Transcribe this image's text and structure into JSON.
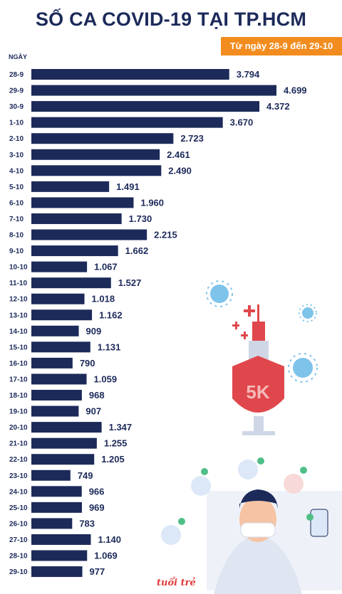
{
  "header": {
    "title": "SỐ CA COVID-19 TẠI TP.HCM",
    "date_range": "Từ ngày 28-9 đến 29-10"
  },
  "colors": {
    "bar": "#1c2a5a",
    "accent": "#f28c1e"
  },
  "logo_text": "tuổi trẻ",
  "chart_data": {
    "type": "bar",
    "orientation": "horizontal",
    "title": "SỐ CA COVID-19 TẠI TP.HCM",
    "subtitle": "Từ ngày 28-9 đến 29-10",
    "ylabel": "NGÀY",
    "xlabel": "",
    "xlim": [
      0,
      5000
    ],
    "categories": [
      "28-9",
      "29-9",
      "30-9",
      "1-10",
      "2-10",
      "3-10",
      "4-10",
      "5-10",
      "6-10",
      "7-10",
      "8-10",
      "9-10",
      "10-10",
      "11-10",
      "12-10",
      "13-10",
      "14-10",
      "15-10",
      "16-10",
      "17-10",
      "18-10",
      "19-10",
      "20-10",
      "21-10",
      "22-10",
      "23-10",
      "24-10",
      "25-10",
      "26-10",
      "27-10",
      "28-10",
      "29-10"
    ],
    "values": [
      3794,
      4699,
      4372,
      3670,
      2723,
      2461,
      2490,
      1491,
      1960,
      1730,
      2215,
      1662,
      1067,
      1527,
      1018,
      1162,
      909,
      1131,
      790,
      1059,
      968,
      907,
      1347,
      1255,
      1205,
      749,
      966,
      969,
      783,
      1140,
      1069,
      977
    ],
    "value_labels": [
      "3.794",
      "4.699",
      "4.372",
      "3.670",
      "2.723",
      "2.461",
      "2.490",
      "1.491",
      "1.960",
      "1.730",
      "2.215",
      "1.662",
      "1.067",
      "1.527",
      "1.018",
      "1.162",
      "909",
      "1.131",
      "790",
      "1.059",
      "968",
      "907",
      "1.347",
      "1.255",
      "1.205",
      "749",
      "966",
      "969",
      "783",
      "1.140",
      "1.069",
      "977"
    ]
  }
}
